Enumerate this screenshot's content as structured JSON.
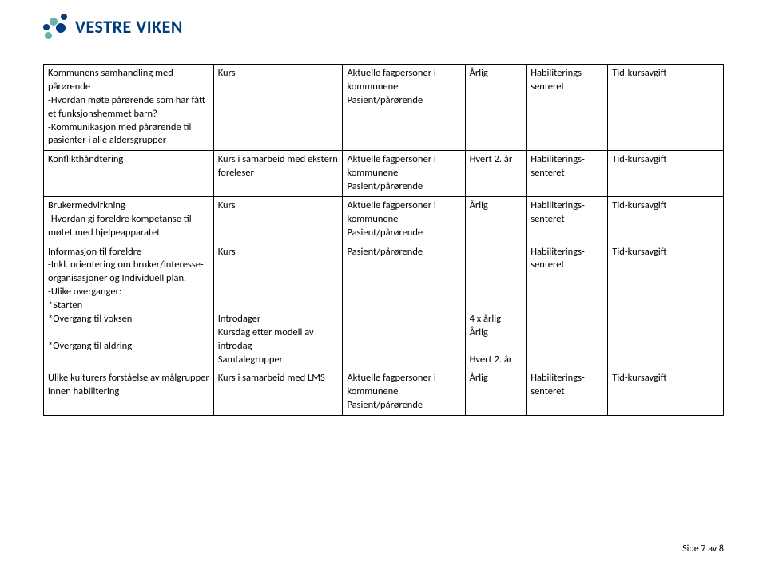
{
  "logo": {
    "text": "VESTRE VIKEN",
    "colors": {
      "brand_text": "#003d7c",
      "dot_blue": "#003d7c",
      "dot_teal": "#66b2b2"
    }
  },
  "table": {
    "border_color": "#000000",
    "font_size": 12.5,
    "column_widths_pct": [
      25,
      19,
      18,
      9,
      12,
      17
    ],
    "rows": [
      {
        "c1": "Kommunens samhandling med pårørende\n-Hvordan møte pårørende som har fått et funksjonshemmet barn?\n-Kommunikasjon med pårørende til pasienter i alle aldersgrupper",
        "c2": "Kurs",
        "c3": "Aktuelle fagpersoner i kommunene\nPasient/pårørende",
        "c4": "Årlig",
        "c5": "Habiliterings-senteret",
        "c6": "Tid-kursavgift"
      },
      {
        "c1": "Konflikthåndtering",
        "c2": "Kurs i samarbeid med ekstern foreleser",
        "c3": "Aktuelle fagpersoner i kommunene\nPasient/pårørende",
        "c4": "Hvert 2. år",
        "c5": "Habiliterings-senteret",
        "c6": "Tid-kursavgift"
      },
      {
        "c1": "Brukermedvirkning\n-Hvordan gi foreldre kompetanse til møtet med hjelpeapparatet",
        "c2": "Kurs",
        "c3": "Aktuelle fagpersoner i kommunene\nPasient/pårørende",
        "c4": "Årlig",
        "c5": "Habiliterings-senteret",
        "c6": "Tid-kursavgift"
      },
      {
        "c1": "Informasjon til foreldre\n-Inkl. orientering om bruker/interesse-organisasjoner og Individuell plan.\n-Ulike overganger:\n*Starten\n*Overgang til voksen\n\n*Overgang til aldring",
        "c2": "Kurs\n\n\n\n\nIntrodager\nKursdag etter modell av introdag\nSamtalegrupper",
        "c3": "Pasient/pårørende",
        "c4": "\n\n\n\n\n4 x årlig\nÅrlig\n\nHvert 2. år",
        "c5": "Habiliterings-senteret",
        "c6": "Tid-kursavgift"
      },
      {
        "c1": "Ulike kulturers forståelse av målgrupper innen habilitering",
        "c2": "Kurs i samarbeid med LMS",
        "c3": "Aktuelle fagpersoner i kommunene\nPasient/pårørende",
        "c4": "Årlig",
        "c5": "Habiliterings-senteret",
        "c6": "Tid-kursavgift"
      }
    ]
  },
  "footer": "Side 7 av 8"
}
